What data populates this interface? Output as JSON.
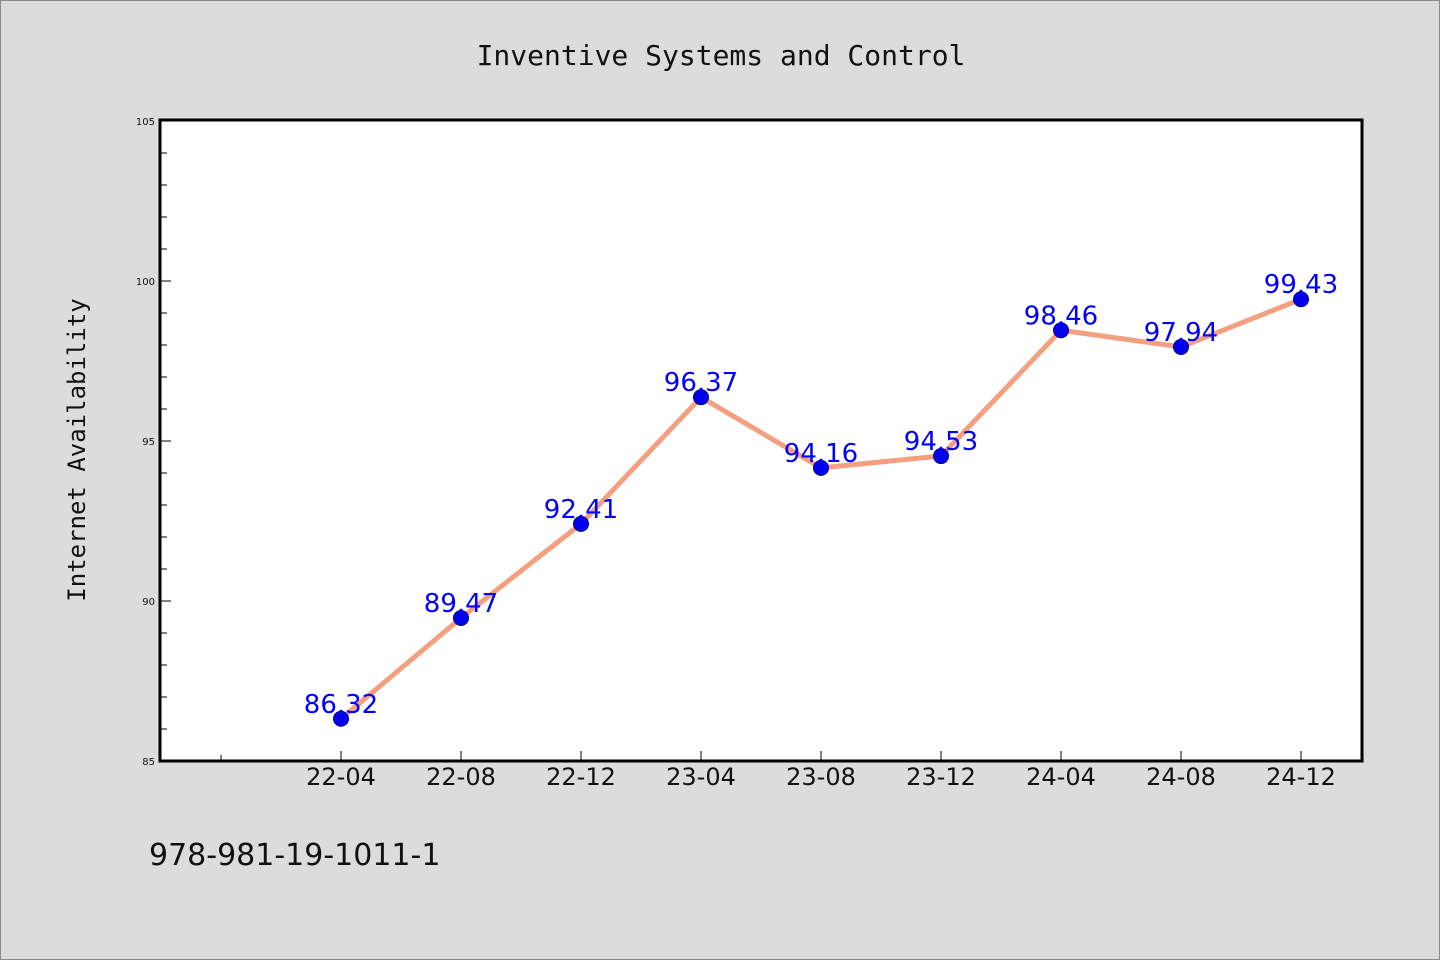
{
  "chart_data": {
    "type": "line",
    "title": "Inventive Systems and Control",
    "ylabel": "Internet Availability",
    "xlabel": "",
    "categories": [
      "22-04",
      "22-08",
      "22-12",
      "23-04",
      "23-08",
      "23-12",
      "24-04",
      "24-08",
      "24-12"
    ],
    "series": [
      {
        "values": [
          86.32,
          89.47,
          92.41,
          96.37,
          94.16,
          94.53,
          98.46,
          97.94,
          99.43
        ],
        "value_labels": [
          "86.32",
          "89.47",
          "92.41",
          "96.37",
          "94.16",
          "94.53",
          "98.46",
          "97.94",
          "99.43"
        ]
      }
    ],
    "ylim": [
      85,
      105
    ],
    "yticks": [
      "85",
      "90",
      "95",
      "100",
      "105"
    ],
    "grid": false,
    "legend": "none",
    "colors": {
      "line": "#f4a080",
      "marker": "#0000ee",
      "marker_edge": "#00008b",
      "data_label": "#0000ff",
      "plot_background": "#ffffff",
      "figure_background": "#dcdcdc"
    }
  },
  "footer_text": "978-981-19-1011-1"
}
